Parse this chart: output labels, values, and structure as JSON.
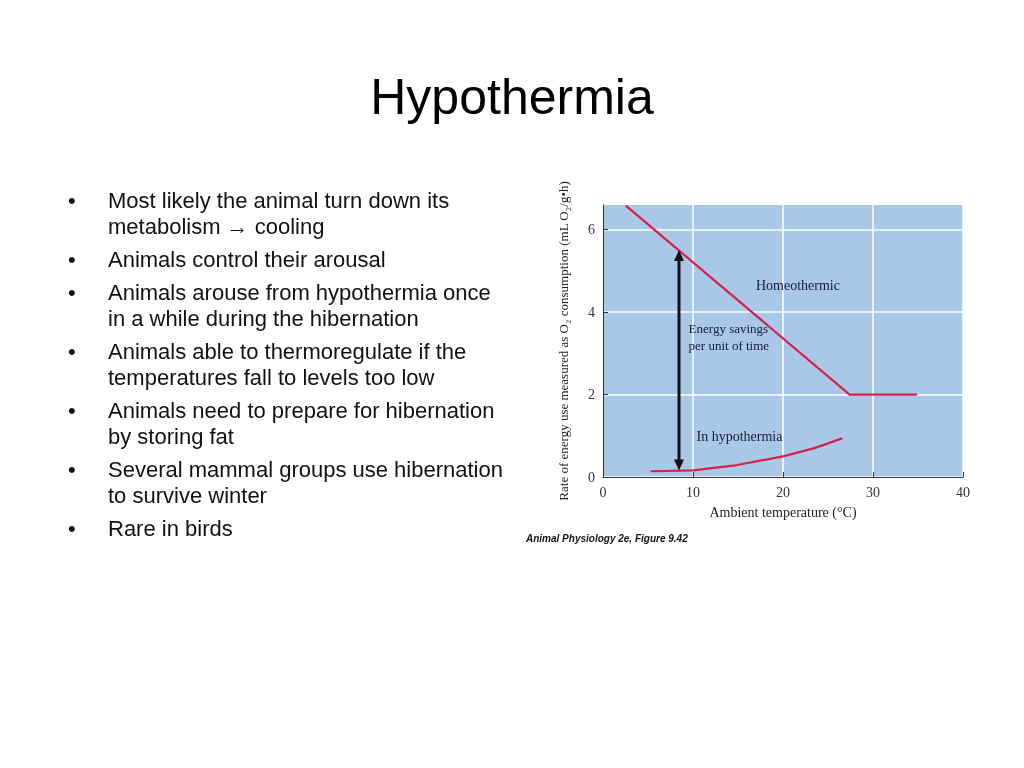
{
  "chart_data": {
    "type": "line",
    "title": "Hypothermia",
    "xlabel": "Ambient temperature (°C)",
    "ylabel": "Rate of energy use measured as O₂ consumption (mL O₂/g•h)",
    "series": [
      {
        "name": "Homeothermic",
        "color": "#d6204a",
        "x": [
          2.6,
          27.4,
          34.8
        ],
        "values": [
          6.57,
          2,
          2
        ]
      },
      {
        "name": "In hypothermia",
        "color": "#d6204a",
        "x": [
          5.4,
          10,
          14.9,
          20,
          23.5,
          26.5
        ],
        "values": [
          0.14,
          0.16,
          0.29,
          0.5,
          0.7,
          0.93
        ]
      }
    ],
    "xlim": [
      0,
      40
    ],
    "xticks": [
      0,
      10,
      20,
      30,
      40
    ],
    "ylim": [
      0,
      6.6
    ],
    "yticks": [
      0,
      2,
      4,
      6
    ],
    "grid": true,
    "marker": "none",
    "line_style": "solid",
    "legend": false,
    "annotations": [
      "Energy savings per unit of time",
      "• Most likely the animal turn down its metabolism → cooling",
      "• Animals control their arousal",
      "• Animals arouse from hypothermia once in a while during the hibernation",
      "• Animals able to thermoregulate if the temperatures fall to levels too low",
      "• Animals need to prepare for hibernation by storing fat",
      "• Several mammal groups use hibernation to survive winter",
      "• Rare in birds",
      "Animal Physiology 2e, Figure 9.42"
    ]
  }
}
